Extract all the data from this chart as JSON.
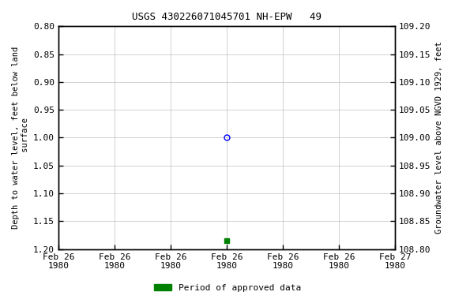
{
  "title": "USGS 430226071045701 NH-EPW   49",
  "ylabel_left": "Depth to water level, feet below land\n surface",
  "ylabel_right": "Groundwater level above NGVD 1929, feet",
  "ylim_left": [
    0.8,
    1.2
  ],
  "ylim_right": [
    108.8,
    109.2
  ],
  "left_yticks": [
    0.8,
    0.85,
    0.9,
    0.95,
    1.0,
    1.05,
    1.1,
    1.15,
    1.2
  ],
  "right_yticks": [
    108.8,
    108.85,
    108.9,
    108.95,
    109.0,
    109.05,
    109.1,
    109.15,
    109.2
  ],
  "left_ytick_labels": [
    "0.80",
    "0.85",
    "0.90",
    "0.95",
    "1.00",
    "1.05",
    "1.10",
    "1.15",
    "1.20"
  ],
  "right_ytick_labels": [
    "108.80",
    "108.85",
    "108.90",
    "108.95",
    "109.00",
    "109.05",
    "109.10",
    "109.15",
    "109.20"
  ],
  "data_point_x": 3.0,
  "data_point_y": 1.0,
  "data_point_color": "#0000ff",
  "data_point_marker": "o",
  "approved_x": 3.0,
  "approved_y": 1.185,
  "approved_color": "#008000",
  "approved_marker": "s",
  "approved_size": 4,
  "xlim": [
    0,
    6
  ],
  "xtick_positions": [
    0,
    1,
    2,
    3,
    4,
    5,
    6
  ],
  "xtick_labels": [
    "Feb 26\n1980",
    "Feb 26\n1980",
    "Feb 26\n1980",
    "Feb 26\n1980",
    "Feb 26\n1980",
    "Feb 26\n1980",
    "Feb 27\n1980"
  ],
  "grid_color": "#c0c0c0",
  "background_color": "#ffffff",
  "legend_label": "Period of approved data",
  "legend_color": "#008000",
  "font_family": "monospace",
  "title_fontsize": 9,
  "tick_fontsize": 8,
  "ylabel_fontsize": 7.5
}
